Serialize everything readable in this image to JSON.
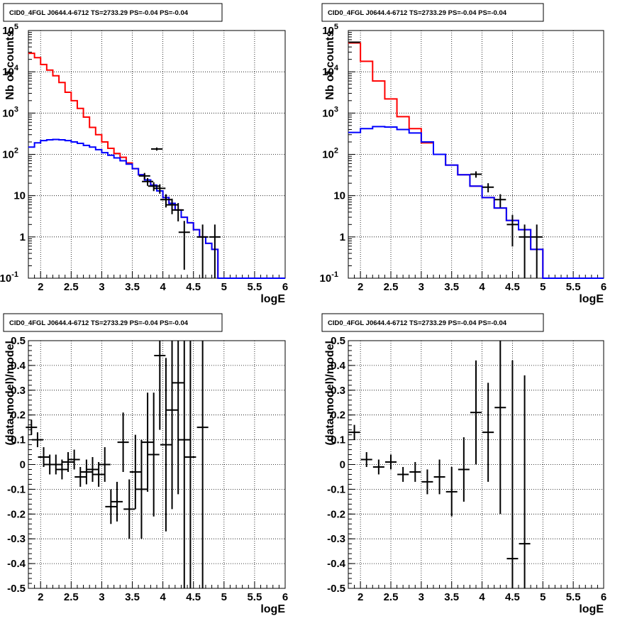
{
  "chart_data": [
    {
      "type": "line",
      "title": "CID0_4FGL J0644.4-6712 TS=2733.29 PS=-0.04 PS=-0.04",
      "xlabel": "logE",
      "ylabel": "Nb of counts",
      "xlim": [
        1.8,
        6
      ],
      "ylim": [
        0.1,
        100000
      ],
      "yscale": "log",
      "grid": true,
      "x_ticks": [
        "2",
        "2.5",
        "3",
        "3.5",
        "4",
        "4.5",
        "5",
        "5.5",
        "6"
      ],
      "y_ticks": [
        "10^-1",
        "1",
        "10",
        "10^2",
        "10^3",
        "10^4",
        "10^5"
      ],
      "bin_edges": [
        1.8,
        1.9,
        2.0,
        2.1,
        2.2,
        2.3,
        2.4,
        2.5,
        2.6,
        2.7,
        2.8,
        2.9,
        3.0,
        3.1,
        3.2,
        3.3,
        3.4,
        3.5,
        3.6,
        3.7,
        3.8,
        3.9,
        4.0,
        4.1,
        4.2,
        4.3,
        4.4,
        4.5,
        4.6,
        4.7,
        4.8,
        4.9,
        5.0,
        5.1,
        5.2,
        5.3,
        5.4,
        5.5,
        5.6,
        5.7,
        5.8,
        5.9,
        6.0
      ],
      "series": [
        {
          "color": "#ff0000",
          "values": [
            28000,
            22000,
            15000,
            11000,
            8000,
            5500,
            3200,
            2000,
            1300,
            800,
            450,
            300,
            200,
            140,
            105,
            85,
            62,
            45,
            32,
            24,
            18,
            13,
            9,
            6.5,
            4.5,
            3,
            2.2,
            1.5,
            1,
            0.7,
            0.5,
            0.1,
            0.1,
            0.1,
            0.1,
            0.1,
            0.1,
            0.1,
            0.1,
            0.1,
            0.1,
            0.1
          ]
        },
        {
          "color": "#0000ff",
          "values": [
            150,
            190,
            215,
            225,
            230,
            225,
            215,
            200,
            185,
            165,
            150,
            130,
            110,
            95,
            82,
            70,
            58,
            45,
            32,
            24,
            18,
            13,
            9,
            6.5,
            4.5,
            3,
            2.2,
            1.5,
            1,
            0.7,
            0.5,
            0.1,
            0.1,
            0.1,
            0.1,
            0.1,
            0.1,
            0.1,
            0.1,
            0.1,
            0.1,
            0.1
          ]
        },
        {
          "color": "#000000",
          "points": [
            [
              3.9,
              135
            ],
            [
              3.7,
              30
            ],
            [
              3.75,
              22
            ],
            [
              3.85,
              17
            ],
            [
              3.95,
              15
            ],
            [
              4.05,
              8
            ],
            [
              4.15,
              6
            ],
            [
              4.25,
              4.5
            ],
            [
              4.35,
              1.3
            ],
            [
              4.65,
              1
            ],
            [
              4.85,
              1
            ]
          ]
        }
      ]
    },
    {
      "type": "line",
      "title": "CID0_4FGL J0644.4-6712 TS=2733.29 PS=-0.04 PS=-0.04",
      "xlabel": "logE",
      "ylabel": "Nb of counts",
      "xlim": [
        1.8,
        6
      ],
      "ylim": [
        0.1,
        100000
      ],
      "yscale": "log",
      "grid": true,
      "x_ticks": [
        "2",
        "2.5",
        "3",
        "3.5",
        "4",
        "4.5",
        "5",
        "5.5",
        "6"
      ],
      "y_ticks": [
        "10^-1",
        "1",
        "10",
        "10^2",
        "10^3",
        "10^4",
        "10^5"
      ],
      "bin_edges": [
        1.8,
        2.0,
        2.2,
        2.4,
        2.6,
        2.8,
        3.0,
        3.2,
        3.4,
        3.6,
        3.8,
        4.0,
        4.2,
        4.4,
        4.6,
        4.8,
        5.0,
        5.2,
        5.4,
        5.6,
        5.8,
        6.0
      ],
      "series": [
        {
          "color": "#ff0000",
          "values": [
            50000,
            18000,
            6000,
            2200,
            820,
            420,
            190,
            100,
            55,
            32,
            17,
            9,
            5,
            2.5,
            1.5,
            0.5,
            0.1,
            0.1,
            0.1,
            0.1,
            0.1
          ]
        },
        {
          "color": "#0000ff",
          "values": [
            340,
            420,
            470,
            460,
            400,
            330,
            200,
            100,
            55,
            32,
            17,
            9,
            5,
            2.5,
            1.5,
            0.5,
            0.1,
            0.1,
            0.1,
            0.1,
            0.1
          ]
        },
        {
          "color": "#000000",
          "points": [
            [
              1.9,
              52000
            ],
            [
              3.9,
              33
            ],
            [
              4.1,
              16
            ],
            [
              4.3,
              8
            ],
            [
              4.5,
              2
            ],
            [
              4.7,
              1
            ],
            [
              4.9,
              1
            ]
          ]
        }
      ]
    },
    {
      "type": "scatter",
      "title": "CID0_4FGL J0644.4-6712 TS=2733.29 PS=-0.04 PS=-0.04",
      "xlabel": "logE",
      "ylabel": "(data-model)/model",
      "xlim": [
        1.8,
        6
      ],
      "ylim": [
        -0.5,
        0.5
      ],
      "grid": true,
      "x_ticks": [
        "2",
        "2.5",
        "3",
        "3.5",
        "4",
        "4.5",
        "5",
        "5.5",
        "6"
      ],
      "y_ticks": [
        "-0.5",
        "-0.4",
        "-0.3",
        "-0.2",
        "-0.1",
        "0",
        "0.1",
        "0.2",
        "0.3",
        "0.4",
        "0.5"
      ],
      "series": [
        {
          "color": "#000000",
          "points": [
            [
              1.85,
              0.15,
              0.03
            ],
            [
              1.95,
              0.1,
              0.03
            ],
            [
              2.05,
              0.03,
              0.04
            ],
            [
              2.15,
              0.0,
              0.04
            ],
            [
              2.25,
              0.0,
              0.04
            ],
            [
              2.35,
              -0.02,
              0.04
            ],
            [
              2.45,
              0.01,
              0.04
            ],
            [
              2.55,
              0.02,
              0.04
            ],
            [
              2.65,
              -0.05,
              0.04
            ],
            [
              2.75,
              -0.03,
              0.05
            ],
            [
              2.85,
              -0.02,
              0.05
            ],
            [
              2.95,
              -0.04,
              0.05
            ],
            [
              3.05,
              0.0,
              0.07
            ],
            [
              3.15,
              -0.17,
              0.07
            ],
            [
              3.25,
              -0.15,
              0.08
            ],
            [
              3.35,
              0.09,
              0.12
            ],
            [
              3.45,
              -0.18,
              0.12
            ],
            [
              3.55,
              -0.03,
              0.15
            ],
            [
              3.65,
              -0.1,
              0.2
            ],
            [
              3.75,
              0.09,
              0.2
            ],
            [
              3.85,
              0.04,
              0.25
            ],
            [
              3.95,
              0.44,
              0.3
            ],
            [
              4.05,
              0.08,
              0.35
            ],
            [
              4.15,
              0.22,
              0.4
            ],
            [
              4.25,
              0.33,
              0.45
            ],
            [
              4.35,
              0.1,
              0.6
            ],
            [
              4.45,
              0.03,
              0.6
            ],
            [
              4.65,
              0.15,
              0.8
            ]
          ]
        }
      ]
    },
    {
      "type": "scatter",
      "title": "CID0_4FGL J0644.4-6712 TS=2733.29 PS=-0.04 PS=-0.04",
      "xlabel": "logE",
      "ylabel": "(data-model)/model",
      "xlim": [
        1.8,
        6
      ],
      "ylim": [
        -0.5,
        0.5
      ],
      "grid": true,
      "x_ticks": [
        "2",
        "2.5",
        "3",
        "3.5",
        "4",
        "4.5",
        "5",
        "5.5",
        "6"
      ],
      "y_ticks": [
        "-0.5",
        "-0.4",
        "-0.3",
        "-0.2",
        "-0.1",
        "0",
        "0.1",
        "0.2",
        "0.3",
        "0.4",
        "0.5"
      ],
      "series": [
        {
          "color": "#000000",
          "points": [
            [
              1.9,
              0.13,
              0.03
            ],
            [
              2.1,
              0.02,
              0.03
            ],
            [
              2.3,
              -0.01,
              0.03
            ],
            [
              2.5,
              0.01,
              0.03
            ],
            [
              2.7,
              -0.04,
              0.03
            ],
            [
              2.9,
              -0.03,
              0.04
            ],
            [
              3.1,
              -0.07,
              0.05
            ],
            [
              3.3,
              -0.05,
              0.07
            ],
            [
              3.5,
              -0.11,
              0.1
            ],
            [
              3.7,
              -0.02,
              0.13
            ],
            [
              3.9,
              0.21,
              0.21
            ],
            [
              4.1,
              0.13,
              0.2
            ],
            [
              4.3,
              0.23,
              0.43
            ],
            [
              4.5,
              -0.38,
              0.8
            ],
            [
              4.7,
              -0.32,
              0.68
            ]
          ]
        }
      ]
    }
  ]
}
